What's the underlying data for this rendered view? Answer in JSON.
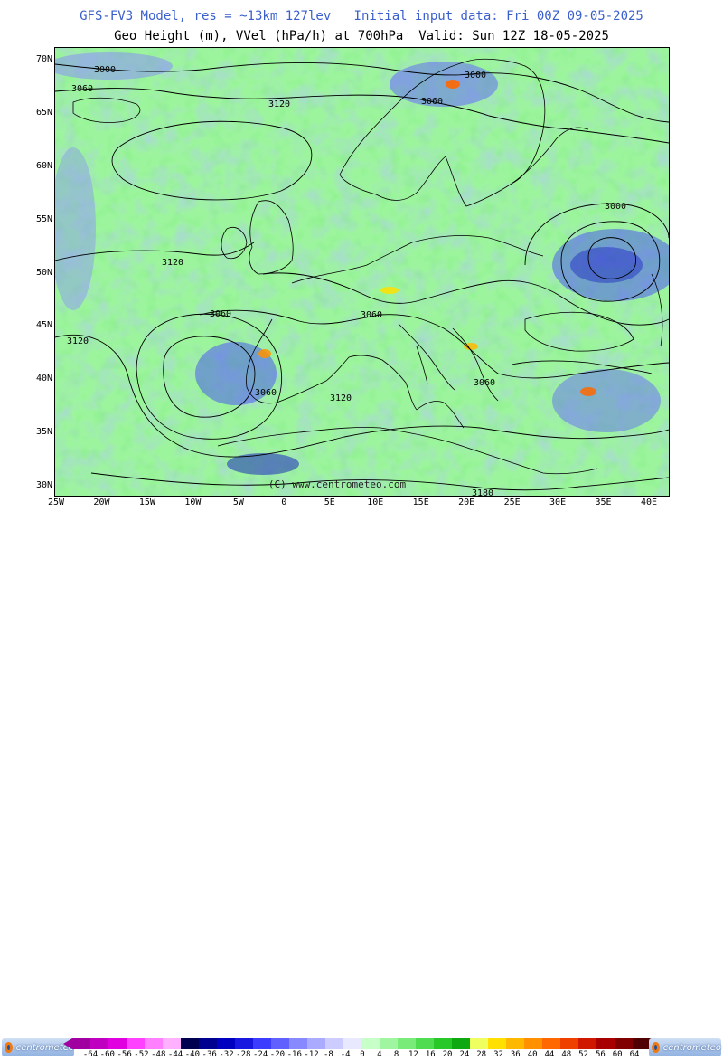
{
  "header": {
    "line1": "GFS-FV3 Model, res = ~13km 127lev   Initial input data: Fri 00Z 09-05-2025",
    "line2": "Geo Height (m), VVel (hPa/h) at 700hPa  Valid: Sun 12Z 18-05-2025"
  },
  "map": {
    "watermark": "(C) www.centrometeo.com",
    "lat_labels": [
      "70N",
      "65N",
      "60N",
      "55N",
      "50N",
      "45N",
      "40N",
      "35N",
      "30N"
    ],
    "lon_labels": [
      "25W",
      "20W",
      "15W",
      "10W",
      "5W",
      "0",
      "5E",
      "10E",
      "15E",
      "20E",
      "25E",
      "30E",
      "35E",
      "40E"
    ],
    "contour_labels": [
      "3000",
      "3060",
      "3120",
      "3000",
      "3060",
      "3000",
      "3120",
      "3060",
      "3060",
      "3120",
      "3060",
      "3060",
      "3120",
      "3180"
    ],
    "contour_line_color": "#000000",
    "base_color": "#9cf59c"
  },
  "legend": {
    "logo_text": "centrometeo",
    "ticks": [
      "-64",
      "-60",
      "-56",
      "-52",
      "-48",
      "-44",
      "-40",
      "-36",
      "-32",
      "-28",
      "-24",
      "-20",
      "-16",
      "-12",
      "-8",
      "-4",
      "0",
      "4",
      "8",
      "12",
      "16",
      "20",
      "24",
      "28",
      "32",
      "36",
      "40",
      "44",
      "48",
      "52",
      "56",
      "60",
      "64"
    ],
    "colors": [
      "#a000a0",
      "#c000c0",
      "#e000e0",
      "#ff40ff",
      "#ff80ff",
      "#ffb0ff",
      "#000050",
      "#000090",
      "#0000c0",
      "#1818e0",
      "#3c3cff",
      "#6060ff",
      "#8888ff",
      "#aaaaff",
      "#ccccff",
      "#e8e8ff",
      "#c8ffc8",
      "#a0f5a0",
      "#78eb78",
      "#50dc50",
      "#28c828",
      "#10a810",
      "#f0ff60",
      "#ffe000",
      "#ffb800",
      "#ff9000",
      "#ff6800",
      "#f04000",
      "#d01800",
      "#a80000",
      "#800000",
      "#500000"
    ]
  }
}
